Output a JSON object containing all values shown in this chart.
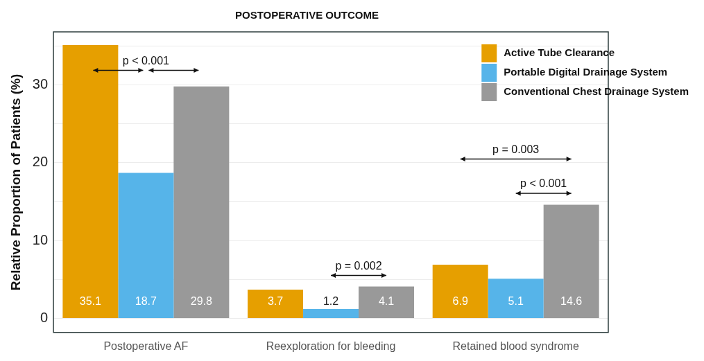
{
  "chart_data": {
    "type": "bar",
    "title": "POSTOPERATIVE OUTCOME",
    "ylabel": "Relative Proportion of Patients (%)",
    "categories": [
      "Postoperative AF",
      "Reexploration for bleeding",
      "Retained blood syndrome"
    ],
    "series": [
      {
        "name": "Active Tube Clearance",
        "color": "#e69f00",
        "values": [
          35.1,
          3.7,
          6.9
        ]
      },
      {
        "name": "Portable Digital Drainage System",
        "color": "#56b4e9",
        "values": [
          18.7,
          1.2,
          5.1
        ]
      },
      {
        "name": "Conventional Chest Drainage System",
        "color": "#999999",
        "values": [
          29.8,
          4.1,
          14.6
        ]
      }
    ],
    "ylim": [
      -1.8,
      36.8
    ],
    "yticks": [
      0,
      {
        "value": 5,
        "label": null
      },
      10,
      {
        "value": 15,
        "label": null
      },
      20,
      {
        "value": 25,
        "label": null
      },
      30,
      {
        "value": 35,
        "label": null
      }
    ],
    "grid": "y",
    "legend": "top right",
    "data_labels": true,
    "annotations": [
      "p < 0.001",
      "p = 0.002",
      "p = 0.003",
      "p < 0.001"
    ]
  }
}
